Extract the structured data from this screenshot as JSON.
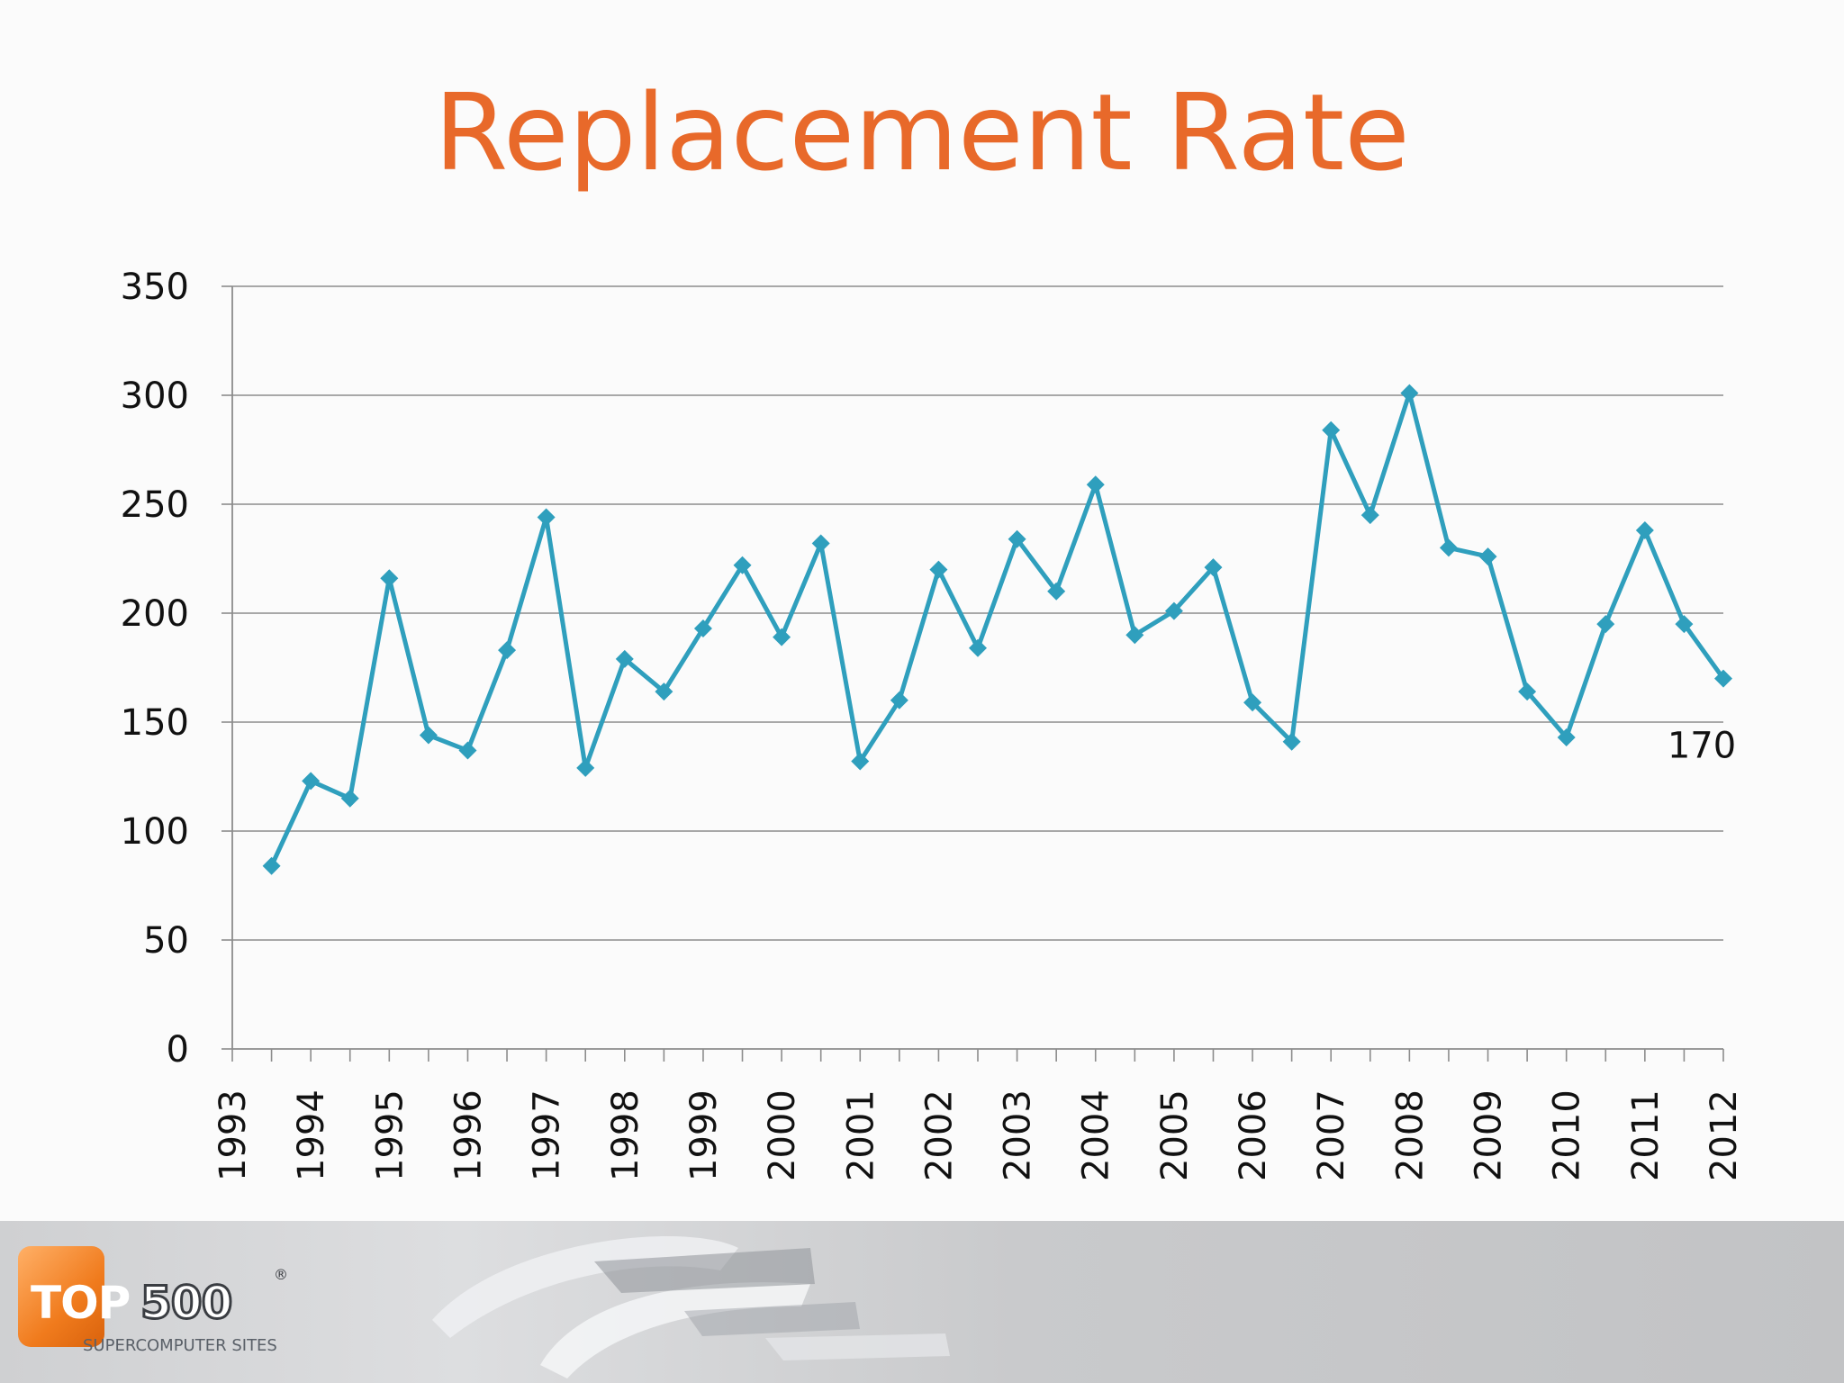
{
  "slide": {
    "title": "Replacement Rate"
  },
  "chart_data": {
    "type": "line",
    "title": "Replacement Rate",
    "xlabel": "",
    "ylabel": "",
    "ylim": [
      0,
      350
    ],
    "yticks": [
      0,
      50,
      100,
      150,
      200,
      250,
      300,
      350
    ],
    "grid": true,
    "categories": [
      "1993",
      "1994",
      "1995",
      "1996",
      "1997",
      "1998",
      "1999",
      "2000",
      "2001",
      "2002",
      "2003",
      "2004",
      "2005",
      "2006",
      "2007",
      "2008",
      "2009",
      "2010",
      "2011",
      "2012"
    ],
    "x": [
      1993.5,
      1994,
      1994.5,
      1995,
      1995.5,
      1996,
      1996.5,
      1997,
      1997.5,
      1998,
      1998.5,
      1999,
      1999.5,
      2000,
      2000.5,
      2001,
      2001.5,
      2002,
      2002.5,
      2003,
      2003.5,
      2004,
      2004.5,
      2005,
      2005.5,
      2006,
      2006.5,
      2007,
      2007.5,
      2008,
      2008.5,
      2009,
      2009.5,
      2010,
      2010.5,
      2011,
      2011.5,
      2012
    ],
    "series": [
      {
        "name": "Replacement Rate",
        "color": "#2f9fbd",
        "values": [
          84,
          123,
          115,
          216,
          144,
          137,
          183,
          244,
          129,
          179,
          164,
          193,
          222,
          189,
          232,
          132,
          160,
          220,
          184,
          234,
          210,
          259,
          190,
          201,
          221,
          159,
          141,
          284,
          245,
          301,
          230,
          226,
          164,
          143,
          195,
          238,
          195,
          170
        ]
      }
    ],
    "annotations": [
      {
        "text": "170",
        "x": 2012,
        "y": 170
      }
    ]
  },
  "footer": {
    "logo": {
      "top": "TOP",
      "num": "500",
      "reg": "®",
      "subtitle": "SUPERCOMPUTER SITES"
    }
  }
}
